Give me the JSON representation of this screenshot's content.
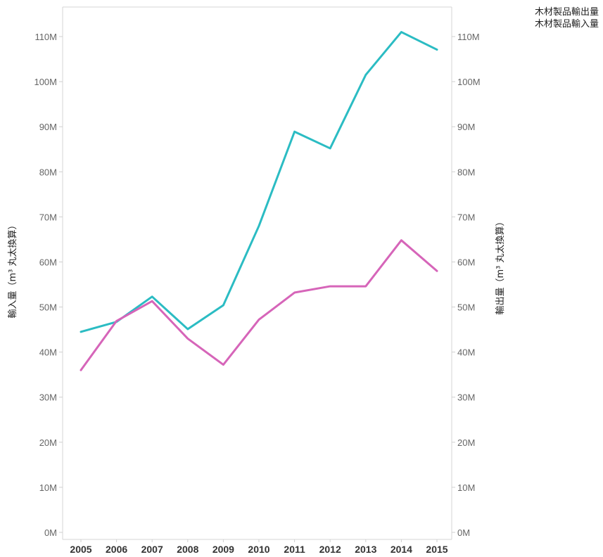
{
  "chart_data": {
    "type": "line",
    "x": [
      2005,
      2006,
      2007,
      2008,
      2009,
      2010,
      2011,
      2012,
      2013,
      2014,
      2015
    ],
    "series": [
      {
        "name": "木材製品輸出量",
        "color": "#2bbcc3",
        "axis": "right",
        "values": [
          44.5,
          46.7,
          52.3,
          45.1,
          50.4,
          68.0,
          88.9,
          85.2,
          101.5,
          111.0,
          107.1
        ]
      },
      {
        "name": "木材製品輸入量",
        "color": "#d665b9",
        "axis": "left",
        "values": [
          36.0,
          46.9,
          51.3,
          43.0,
          37.2,
          47.2,
          53.2,
          54.6,
          54.6,
          64.8,
          58.0
        ]
      }
    ],
    "ylim": [
      0,
      115
    ],
    "y_ticks": [
      0,
      10,
      20,
      30,
      40,
      50,
      60,
      70,
      80,
      90,
      100,
      110
    ],
    "y_tick_labels": [
      "0M",
      "10M",
      "20M",
      "30M",
      "40M",
      "50M",
      "60M",
      "70M",
      "80M",
      "90M",
      "100M",
      "110M"
    ],
    "ylabel_left": "輸入量（m³ 丸太換算）",
    "ylabel_right": "輸出量（m³ 丸太換算）",
    "grid": false,
    "legend_position": "top-right"
  }
}
